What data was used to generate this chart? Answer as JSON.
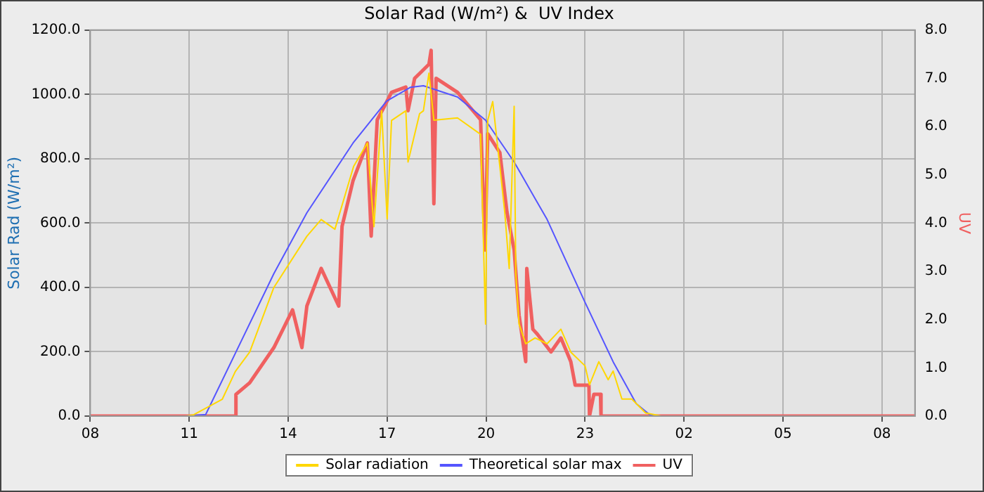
{
  "chart_data": {
    "type": "line",
    "title": "Solar Rad (W/m²) &  UV Index",
    "ylabel": "Solar Rad (W/m²)",
    "y2label": "UV",
    "xlim": [
      "--01-01T08:00",
      "--01-02T09:00"
    ],
    "xticks": [
      {
        "value": "--01-01T08:00",
        "label": "08"
      },
      {
        "value": "--01-01T11:00",
        "label": "11"
      },
      {
        "value": "--01-01T14:00",
        "label": "14"
      },
      {
        "value": "--01-01T17:00",
        "label": "17"
      },
      {
        "value": "--01-01T20:00",
        "label": "20"
      },
      {
        "value": "--01-01T23:00",
        "label": "23"
      },
      {
        "value": "--01-02T02:00",
        "label": "02"
      },
      {
        "value": "--01-02T05:00",
        "label": "05"
      },
      {
        "value": "--01-02T08:00",
        "label": "08"
      }
    ],
    "ylim": [
      0,
      1200
    ],
    "yticks": [
      {
        "value": 0,
        "label": "0.0"
      },
      {
        "value": 200,
        "label": "200.0"
      },
      {
        "value": 400,
        "label": "400.0"
      },
      {
        "value": 600,
        "label": "600.0"
      },
      {
        "value": 800,
        "label": "800.0"
      },
      {
        "value": 1000,
        "label": "1000.0"
      },
      {
        "value": 1200,
        "label": "1200.0"
      }
    ],
    "y2lim": [
      0,
      8
    ],
    "y2ticks": [
      {
        "value": 0,
        "label": "0.0"
      },
      {
        "value": 1,
        "label": "1.0"
      },
      {
        "value": 2,
        "label": "2.0"
      },
      {
        "value": 3,
        "label": "3.0"
      },
      {
        "value": 4,
        "label": "4.0"
      },
      {
        "value": 5,
        "label": "5.0"
      },
      {
        "value": 6,
        "label": "6.0"
      },
      {
        "value": 7,
        "label": "7.0"
      },
      {
        "value": 8,
        "label": "8.0"
      }
    ],
    "grid": true,
    "legend": "bottom",
    "marker": "none",
    "line_style": "solid",
    "series": [
      {
        "name": "Solar radiation",
        "color": "#ffd700",
        "x": [
          "--01-01T10:54",
          "--01-01T11:08",
          "--01-01T12:00",
          "--01-01T12:24",
          "--01-01T12:50",
          "--01-01T13:34",
          "--01-01T14:34",
          "--01-01T15:00",
          "--01-01T15:25",
          "--01-01T15:59",
          "--01-01T16:24",
          "--01-01T16:36",
          "--01-01T16:50",
          "--01-01T17:00",
          "--01-01T17:08",
          "--01-01T17:34",
          "--01-01T17:38",
          "--01-01T17:59",
          "--01-01T18:06",
          "--01-01T18:16",
          "--01-01T18:25",
          "--01-01T19:08",
          "--01-01T19:50",
          "--01-01T19:59",
          "--01-01T20:03",
          "--01-01T20:12",
          "--01-01T20:25",
          "--01-01T20:34",
          "--01-01T20:42",
          "--01-01T20:51",
          "--01-01T20:54",
          "--01-01T21:00",
          "--01-01T21:12",
          "--01-01T21:29",
          "--01-01T21:51",
          "--01-01T22:16",
          "--01-01T22:34",
          "--01-01T23:00",
          "--01-01T23:08",
          "--01-01T23:25",
          "--01-01T23:42",
          "--01-01T23:51",
          "--01-02T00:07",
          "--01-02T00:25",
          "--01-02T00:50",
          "--01-02T01:08",
          "--01-02T01:18"
        ],
        "values": [
          0,
          4,
          52,
          139,
          199,
          400,
          559,
          611,
          581,
          776,
          849,
          589,
          949,
          613,
          919,
          949,
          790,
          940,
          949,
          1066,
          920,
          927,
          876,
          286,
          920,
          978,
          776,
          632,
          459,
          963,
          441,
          286,
          225,
          243,
          225,
          270,
          199,
          156,
          97,
          169,
          113,
          140,
          53,
          53,
          10,
          4,
          0
        ]
      },
      {
        "name": "Theoretical solar max",
        "color": "#5555ff",
        "x": [
          "--01-01T10:54",
          "--01-01T11:30",
          "--01-01T12:25",
          "--01-01T13:34",
          "--01-01T14:34",
          "--01-01T15:58",
          "--01-01T16:59",
          "--01-01T17:42",
          "--01-01T18:06",
          "--01-01T19:08",
          "--01-01T19:59",
          "--01-01T20:51",
          "--01-01T21:51",
          "--01-01T22:59",
          "--01-01T23:51",
          "--01-02T00:33",
          "--01-02T00:58",
          "--01-02T01:12"
        ],
        "values": [
          0,
          5,
          199,
          443,
          632,
          849,
          979,
          1022,
          1027,
          992,
          920,
          790,
          611,
          357,
          169,
          39,
          4,
          0
        ]
      },
      {
        "name": "UV",
        "color": "#f06060",
        "axis": "y2",
        "x": [
          "--01-01T08:00",
          "--01-01T12:24",
          "--01-01T12:25",
          "--01-01T12:50",
          "--01-01T13:34",
          "--01-01T14:08",
          "--01-01T14:25",
          "--01-01T14:34",
          "--01-01T15:00",
          "--01-01T15:32",
          "--01-01T15:38",
          "--01-01T15:58",
          "--01-01T16:24",
          "--01-01T16:31",
          "--01-01T16:42",
          "--01-01T16:55",
          "--01-01T17:08",
          "--01-01T17:34",
          "--01-01T17:38",
          "--01-01T17:50",
          "--01-01T18:16",
          "--01-01T18:20",
          "--01-01T18:25",
          "--01-01T18:29",
          "--01-01T19:08",
          "--01-01T19:50",
          "--01-01T19:58",
          "--01-01T20:03",
          "--01-01T20:25",
          "--01-01T20:38",
          "--01-01T20:51",
          "--01-01T21:00",
          "--01-01T21:12",
          "--01-01T21:14",
          "--01-01T21:25",
          "--01-01T21:33",
          "--01-01T21:58",
          "--01-01T22:16",
          "--01-01T22:34",
          "--01-01T22:42",
          "--01-01T23:00",
          "--01-01T23:07",
          "--01-01T23:08",
          "--01-01T23:16",
          "--01-01T23:28",
          "--01-01T23:29",
          "--01-02T09:00"
        ],
        "values": [
          0,
          0,
          0.45,
          0.69,
          1.42,
          2.2,
          1.42,
          2.28,
          3.06,
          2.28,
          3.93,
          4.88,
          5.66,
          3.73,
          6.14,
          6.42,
          6.71,
          6.82,
          6.33,
          7.0,
          7.29,
          7.58,
          4.4,
          7.0,
          6.71,
          6.14,
          3.44,
          5.85,
          5.46,
          4.22,
          3.44,
          2.09,
          1.13,
          3.06,
          1.8,
          1.7,
          1.33,
          1.62,
          1.13,
          0.64,
          0.64,
          0.64,
          0,
          0.45,
          0.45,
          0,
          0
        ]
      }
    ]
  }
}
